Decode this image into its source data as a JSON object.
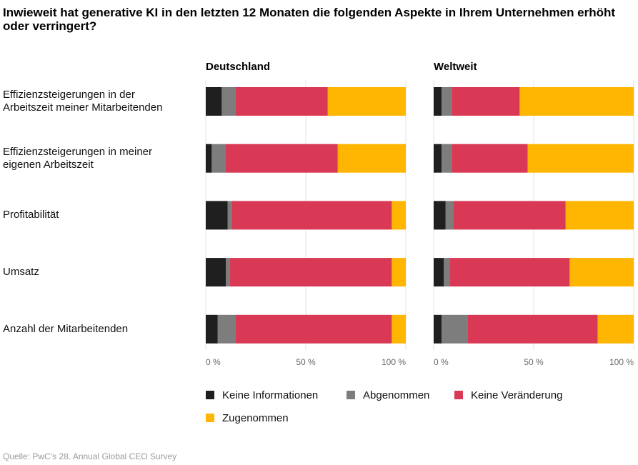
{
  "chart_data": {
    "type": "stacked-barh",
    "title": "Inwieweit hat generative KI in den letzten 12 Monaten die folgenden Aspekte in Ihrem Unternehmen erhöht oder verringert?",
    "categories": [
      "Effizienzsteigerungen in der Arbeitszeit meiner Mitarbeitenden",
      "Effizienzsteigerungen in meiner eigenen Arbeitszeit",
      "Profitabilität",
      "Umsatz",
      "Anzahl der Mitarbeitenden"
    ],
    "series": [
      {
        "name": "Keine Informationen",
        "color": "#1f1f1f"
      },
      {
        "name": "Abgenommen",
        "color": "#7d7d7d"
      },
      {
        "name": "Keine Veränderung",
        "color": "#d93954"
      },
      {
        "name": "Zugenommen",
        "color": "#ffb600"
      }
    ],
    "panels": [
      {
        "title": "Deutschland",
        "series": [
          {
            "values": [
              8,
              3,
              11,
              10,
              6
            ]
          },
          {
            "values": [
              7,
              7,
              2,
              2,
              9
            ]
          },
          {
            "values": [
              46,
              56,
              80,
              81,
              78
            ]
          },
          {
            "values": [
              39,
              34,
              7,
              7,
              7
            ]
          }
        ]
      },
      {
        "title": "Weltweit",
        "series": [
          {
            "values": [
              4,
              4,
              6,
              5,
              4
            ]
          },
          {
            "values": [
              5,
              5,
              4,
              3,
              13
            ]
          },
          {
            "values": [
              34,
              38,
              56,
              60,
              65
            ]
          },
          {
            "values": [
              57,
              53,
              34,
              32,
              18
            ]
          }
        ]
      }
    ],
    "xlim": [
      0,
      100
    ],
    "xticks": [
      {
        "value": 0,
        "label": "0 %"
      },
      {
        "value": 50,
        "label": "50 %"
      },
      {
        "value": 100,
        "label": "100 %"
      }
    ],
    "grid": true,
    "source": "Quelle: PwC’s 28. Annual Global CEO Survey"
  }
}
